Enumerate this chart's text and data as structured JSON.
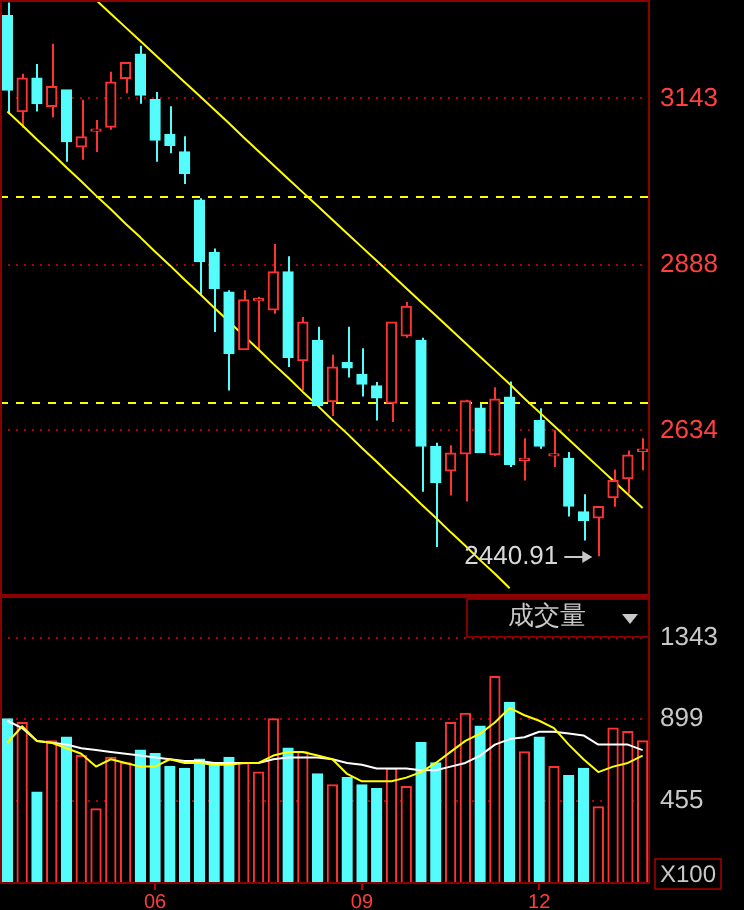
{
  "chart_data": [
    {
      "type": "candlestick",
      "categories": [
        null,
        null,
        null,
        null,
        null,
        null,
        null,
        null,
        null,
        null,
        "06",
        null,
        null,
        null,
        null,
        null,
        null,
        null,
        null,
        null,
        null,
        null,
        null,
        null,
        "09",
        null,
        null,
        null,
        null,
        null,
        null,
        null,
        null,
        null,
        null,
        null,
        "12",
        null,
        null,
        null,
        null,
        null,
        null,
        null
      ],
      "ylim": [
        2380,
        3294
      ],
      "yticks": [
        2634,
        2888,
        3143
      ],
      "grid": "y",
      "tick_labels": "y",
      "ohlc": [
        [
          3270,
          3290,
          3120,
          3156
        ],
        [
          3123,
          3181,
          3098,
          3174
        ],
        [
          3174,
          3196,
          3123,
          3135
        ],
        [
          3131,
          3227,
          3114,
          3161
        ],
        [
          3156,
          3156,
          3046,
          3077
        ],
        [
          3069,
          3141,
          3049,
          3084
        ],
        [
          3093,
          3110,
          3061,
          3094
        ],
        [
          3099,
          3184,
          3095,
          3168
        ],
        [
          3174,
          3198,
          3151,
          3198
        ],
        [
          3211,
          3224,
          3135,
          3148
        ],
        [
          3141,
          3153,
          3046,
          3079
        ],
        [
          3088,
          3131,
          3059,
          3071
        ],
        [
          3061,
          3085,
          3012,
          3028
        ],
        [
          2987,
          2990,
          2841,
          2893
        ],
        [
          2907,
          2913,
          2785,
          2852
        ],
        [
          2846,
          2849,
          2695,
          2752
        ],
        [
          2758,
          2849,
          2758,
          2834
        ],
        [
          2833,
          2839,
          2757,
          2834
        ],
        [
          2819,
          2920,
          2813,
          2877
        ],
        [
          2877,
          2901,
          2731,
          2746
        ],
        [
          2741,
          2808,
          2695,
          2800
        ],
        [
          2772,
          2793,
          2670,
          2672
        ],
        [
          2678,
          2750,
          2656,
          2731
        ],
        [
          2738,
          2793,
          2715,
          2730
        ],
        [
          2720,
          2760,
          2686,
          2705
        ],
        [
          2702,
          2708,
          2649,
          2684
        ],
        [
          2676,
          2800,
          2647,
          2800
        ],
        [
          2779,
          2831,
          2776,
          2824
        ],
        [
          2772,
          2776,
          2540,
          2610
        ],
        [
          2609,
          2615,
          2455,
          2554
        ],
        [
          2572,
          2611,
          2534,
          2599
        ],
        [
          2598,
          2681,
          2525,
          2679
        ],
        [
          2668,
          2675,
          2600,
          2600
        ],
        [
          2597,
          2700,
          2595,
          2682
        ],
        [
          2685,
          2709,
          2578,
          2582
        ],
        [
          2588,
          2622,
          2557,
          2589
        ],
        [
          2649,
          2668,
          2606,
          2610
        ],
        [
          2595,
          2634,
          2578,
          2596
        ],
        [
          2591,
          2601,
          2502,
          2518
        ],
        [
          2509,
          2536,
          2465,
          2496
        ],
        [
          2500,
          2517,
          2440.91,
          2517
        ],
        [
          2531,
          2574,
          2517,
          2557
        ],
        [
          2560,
          2603,
          2537,
          2596
        ],
        [
          2602,
          2622,
          2573,
          2603
        ]
      ],
      "colors": [
        "#54fcfc",
        "#ff3232",
        "#54fcfc",
        "#ff3232",
        "#54fcfc",
        "#ff3232",
        "#ff3232",
        "#ff3232",
        "#ff3232",
        "#54fcfc",
        "#54fcfc",
        "#54fcfc",
        "#54fcfc",
        "#54fcfc",
        "#54fcfc",
        "#54fcfc",
        "#ff3232",
        "#ff3232",
        "#ff3232",
        "#54fcfc",
        "#ff3232",
        "#54fcfc",
        "#ff3232",
        "#54fcfc",
        "#54fcfc",
        "#54fcfc",
        "#ff3232",
        "#ff3232",
        "#54fcfc",
        "#54fcfc",
        "#ff3232",
        "#ff3232",
        "#54fcfc",
        "#ff3232",
        "#54fcfc",
        "#ff3232",
        "#54fcfc",
        "#ff3232",
        "#54fcfc",
        "#54fcfc",
        "#ff3232",
        "#ff3232",
        "#ff3232",
        "#ff3232"
      ],
      "series": [
        {
          "type": "line",
          "color": "#ffff00",
          "values": [
            null,
            null,
            null,
            null,
            null,
            null,
            3294,
            3273,
            3252,
            3231,
            3210,
            3189,
            3168,
            3147,
            3126,
            3105,
            3083,
            3062,
            3041,
            3020,
            2999,
            2978,
            2957,
            2936,
            2915,
            2894,
            2873,
            2852,
            2831,
            2810,
            2789,
            2768,
            2747,
            2726,
            2705,
            2683,
            2662,
            2641,
            2620,
            2599,
            2578,
            2557,
            2536,
            2515
          ]
        },
        {
          "type": "line",
          "color": "#ffff00",
          "values": [
            3123,
            3102,
            3080,
            3059,
            3037,
            3016,
            2994,
            2973,
            2951,
            2930,
            2908,
            2887,
            2865,
            2844,
            2822,
            2801,
            2779,
            2758,
            2736,
            2715,
            2693,
            2672,
            2650,
            2629,
            2607,
            2586,
            2564,
            2543,
            2521,
            2500,
            2478,
            2457,
            2435,
            2414,
            2392,
            null,
            null,
            null,
            null,
            null,
            null,
            null,
            null,
            null
          ]
        }
      ],
      "ref_lines": [
        {
          "axis": "y",
          "value": 2993,
          "color": "#ffff00",
          "line_style": "dashed"
        },
        {
          "axis": "y",
          "value": 2677,
          "color": "#ffff00",
          "line_style": "dashed"
        }
      ],
      "annotations": [
        "2440.91"
      ]
    },
    {
      "type": "bar",
      "title": "成交量",
      "categories": [
        null,
        null,
        null,
        null,
        null,
        null,
        null,
        null,
        null,
        null,
        "06",
        null,
        null,
        null,
        null,
        null,
        null,
        null,
        null,
        null,
        null,
        null,
        null,
        null,
        "09",
        null,
        null,
        null,
        null,
        null,
        null,
        null,
        null,
        null,
        null,
        null,
        "12",
        null,
        null,
        null,
        null,
        null,
        null,
        null
      ],
      "ylim": [
        0,
        1570
      ],
      "yticks": [
        455,
        899,
        1343
      ],
      "grid": "y",
      "series": [
        {
          "type": "bar",
          "values": [
            900,
            880,
            500,
            780,
            800,
            700,
            410,
            690,
            660,
            730,
            710,
            640,
            630,
            680,
            660,
            690,
            660,
            610,
            900,
            740,
            720,
            600,
            540,
            580,
            540,
            520,
            630,
            530,
            770,
            660,
            880,
            930,
            860,
            1130,
            990,
            720,
            800,
            640,
            590,
            630,
            420,
            850,
            830,
            780
          ],
          "colors": [
            "#54fcfc",
            "#ff3232",
            "#54fcfc",
            "#ff3232",
            "#54fcfc",
            "#ff3232",
            "#ff3232",
            "#ff3232",
            "#ff3232",
            "#54fcfc",
            "#54fcfc",
            "#54fcfc",
            "#54fcfc",
            "#54fcfc",
            "#54fcfc",
            "#54fcfc",
            "#ff3232",
            "#ff3232",
            "#ff3232",
            "#54fcfc",
            "#ff3232",
            "#54fcfc",
            "#ff3232",
            "#54fcfc",
            "#54fcfc",
            "#54fcfc",
            "#ff3232",
            "#ff3232",
            "#54fcfc",
            "#54fcfc",
            "#ff3232",
            "#ff3232",
            "#54fcfc",
            "#ff3232",
            "#54fcfc",
            "#ff3232",
            "#54fcfc",
            "#ff3232",
            "#54fcfc",
            "#54fcfc",
            "#ff3232",
            "#ff3232",
            "#ff3232",
            "#ff3232"
          ]
        },
        {
          "type": "line",
          "color": "#ffff00",
          "values": [
            770,
            860,
            780,
            770,
            740,
            710,
            640,
            680,
            660,
            640,
            640,
            680,
            660,
            660,
            650,
            650,
            660,
            660,
            700,
            720,
            720,
            700,
            680,
            600,
            560,
            560,
            560,
            580,
            610,
            660,
            720,
            780,
            820,
            880,
            960,
            920,
            890,
            850,
            760,
            680,
            610,
            640,
            660,
            700
          ]
        },
        {
          "type": "line",
          "color": "#ffffff",
          "values": [
            890,
            850,
            780,
            770,
            760,
            740,
            730,
            720,
            710,
            700,
            690,
            680,
            670,
            670,
            660,
            660,
            660,
            660,
            680,
            690,
            690,
            690,
            680,
            660,
            650,
            630,
            630,
            630,
            620,
            620,
            640,
            660,
            700,
            760,
            790,
            800,
            830,
            830,
            820,
            810,
            760,
            760,
            760,
            730
          ]
        }
      ],
      "annotations": [
        "X100"
      ]
    }
  ]
}
